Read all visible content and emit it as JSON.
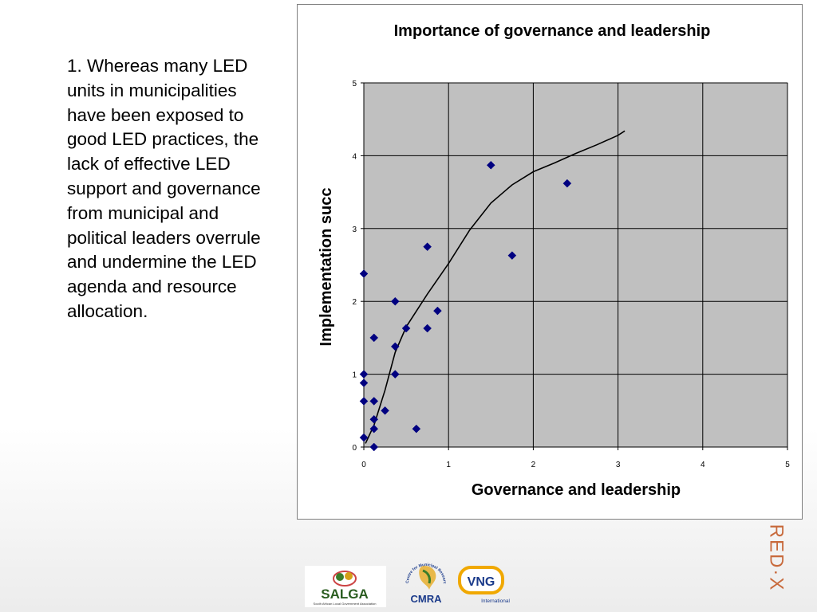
{
  "body_text": "1. Whereas many LED units in municipalities have been exposed to good LED practices, the lack of effective LED support and governance from municipal and political leaders overrule and undermine the LED agenda and resource allocation.",
  "logos": {
    "salga": "SALGA",
    "salga_sub": "South African Local Government Association",
    "cmra": "CMRA",
    "cmra_arc": "Centre for Municipal Research & Advice",
    "vng": "VNG",
    "vng_sub": "International",
    "redx": "RED·X"
  },
  "colors": {
    "plot_bg": "#c0c0c0",
    "marker": "#000080",
    "grid": "#000000",
    "brand_orange": "#c86a3c"
  },
  "chart_data": {
    "type": "scatter",
    "title": "Importance of governance and leadership",
    "xlabel": "Governance and leadership",
    "ylabel": "Implementation succ",
    "xlim": [
      0,
      5
    ],
    "ylim": [
      0,
      5
    ],
    "xticks": [
      0,
      1,
      2,
      3,
      4,
      5
    ],
    "yticks": [
      0,
      1,
      2,
      3,
      4,
      5
    ],
    "grid": true,
    "legend": "none",
    "series": [
      {
        "marker": "diamond",
        "points": [
          [
            0.0,
            2.38
          ],
          [
            0.0,
            1.0
          ],
          [
            0.0,
            0.88
          ],
          [
            0.0,
            0.63
          ],
          [
            0.0,
            0.13
          ],
          [
            0.12,
            1.5
          ],
          [
            0.12,
            0.63
          ],
          [
            0.12,
            0.38
          ],
          [
            0.12,
            0.25
          ],
          [
            0.12,
            0.0
          ],
          [
            0.25,
            0.5
          ],
          [
            0.37,
            2.0
          ],
          [
            0.37,
            1.38
          ],
          [
            0.37,
            1.0
          ],
          [
            0.5,
            1.63
          ],
          [
            0.62,
            0.25
          ],
          [
            0.75,
            2.75
          ],
          [
            0.75,
            1.63
          ],
          [
            0.87,
            1.87
          ],
          [
            1.5,
            3.87
          ],
          [
            1.75,
            2.63
          ],
          [
            2.4,
            3.62
          ]
        ]
      }
    ],
    "trendline": [
      [
        0.02,
        0.05
      ],
      [
        0.12,
        0.3
      ],
      [
        0.25,
        0.78
      ],
      [
        0.37,
        1.3
      ],
      [
        0.5,
        1.65
      ],
      [
        0.75,
        2.1
      ],
      [
        1.0,
        2.52
      ],
      [
        1.25,
        2.98
      ],
      [
        1.5,
        3.35
      ],
      [
        1.75,
        3.6
      ],
      [
        2.0,
        3.78
      ],
      [
        2.25,
        3.9
      ],
      [
        2.5,
        4.03
      ],
      [
        2.75,
        4.15
      ],
      [
        3.0,
        4.28
      ],
      [
        3.08,
        4.34
      ]
    ]
  }
}
